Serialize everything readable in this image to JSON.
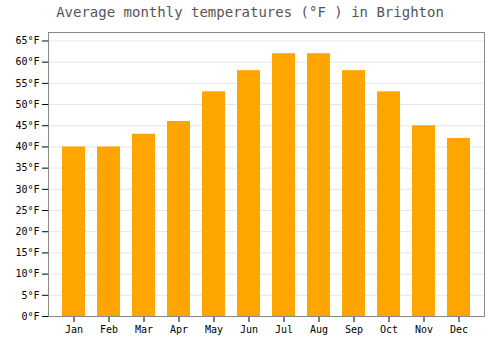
{
  "chart_data": {
    "type": "bar",
    "title": "Average monthly temperatures (°F ) in Brighton",
    "categories": [
      "Jan",
      "Feb",
      "Mar",
      "Apr",
      "May",
      "Jun",
      "Jul",
      "Aug",
      "Sep",
      "Oct",
      "Nov",
      "Dec"
    ],
    "values": [
      40,
      40,
      43,
      46,
      53,
      58,
      62,
      62,
      58,
      53,
      45,
      42
    ],
    "color": "#FFA500",
    "ylim": [
      0,
      67
    ],
    "yticks": [
      {
        "value": 0,
        "label": "0°F"
      },
      {
        "value": 5,
        "label": "5°F"
      },
      {
        "value": 10,
        "label": "10°F"
      },
      {
        "value": 15,
        "label": "15°F"
      },
      {
        "value": 20,
        "label": "20°F"
      },
      {
        "value": 25,
        "label": "25°F"
      },
      {
        "value": 30,
        "label": "30°F"
      },
      {
        "value": 35,
        "label": "35°F"
      },
      {
        "value": 40,
        "label": "40°F"
      },
      {
        "value": 45,
        "label": "45°F"
      },
      {
        "value": 50,
        "label": "50°F"
      },
      {
        "value": 55,
        "label": "55°F"
      },
      {
        "value": 60,
        "label": "60°F"
      },
      {
        "value": 65,
        "label": "65°F"
      }
    ],
    "grid": true
  }
}
